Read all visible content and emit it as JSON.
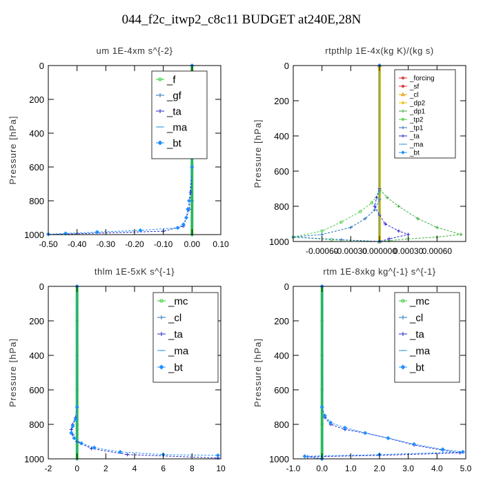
{
  "figure_title": "044_f2c_itwp2_c8c11  BUDGET at240E,28N",
  "chart_data": [
    {
      "type": "line",
      "title": "um   1E-4xm s^{-2}",
      "ylabel": "Pressure [hPa]",
      "xlim": [
        -0.5,
        0.1
      ],
      "ylim": [
        1000,
        0
      ],
      "xticks": [
        -0.5,
        -0.4,
        -0.3,
        -0.2,
        -0.1,
        0.0,
        0.1
      ],
      "xtick_labels": [
        "-0.50",
        "-0.40",
        "-0.30",
        "-0.20",
        "-0.10",
        "0.00",
        "0.10"
      ],
      "yticks": [
        0,
        200,
        400,
        600,
        800,
        1000
      ],
      "ytick_labels": [
        "0",
        "200",
        "400",
        "600",
        "800",
        "1000"
      ],
      "legend_position": "top-right",
      "series": [
        {
          "name": "_f",
          "color": "#2ecc2e",
          "marker": "circle",
          "points": [
            [
              0.0,
              0
            ],
            [
              0.0,
              200
            ],
            [
              0.0,
              400
            ],
            [
              0.0,
              600
            ],
            [
              0.0,
              800
            ],
            [
              0.0,
              1000
            ]
          ]
        },
        {
          "name": "_gf",
          "color": "#1f6fb5",
          "marker": "plus",
          "points": [
            [
              0.0,
              0
            ],
            [
              0.0,
              200
            ],
            [
              0.0,
              400
            ],
            [
              0.0,
              600
            ],
            [
              0.0,
              800
            ],
            [
              0.0,
              1000
            ]
          ]
        },
        {
          "name": "_ta",
          "color": "#2222cc",
          "marker": "plus",
          "points": [
            [
              0.0,
              0
            ],
            [
              0.0,
              600
            ],
            [
              -0.005,
              750
            ],
            [
              -0.01,
              850
            ],
            [
              -0.02,
              900
            ],
            [
              -0.03,
              950
            ],
            [
              -0.1,
              980
            ],
            [
              -0.5,
              1000
            ]
          ]
        },
        {
          "name": "_ma",
          "color": "#3399dd",
          "marker": "dash",
          "points": [
            [
              0.0,
              0
            ],
            [
              0.0,
              1000
            ]
          ]
        },
        {
          "name": "_bt",
          "color": "#1e90ff",
          "marker": "diamond",
          "points": [
            [
              0.0,
              0
            ],
            [
              0.0,
              600
            ],
            [
              -0.01,
              800
            ],
            [
              -0.015,
              850
            ],
            [
              -0.02,
              900
            ],
            [
              -0.03,
              940
            ],
            [
              -0.05,
              960
            ],
            [
              -0.18,
              975
            ],
            [
              -0.33,
              985
            ],
            [
              -0.44,
              993
            ],
            [
              -0.5,
              998
            ]
          ]
        }
      ]
    },
    {
      "type": "line",
      "title": "rtpthlp   1E-4x(kg K)/(kg s)",
      "ylabel": "Pressure [hPa]",
      "xlim": [
        -0.0009,
        0.0009
      ],
      "ylim": [
        1000,
        0
      ],
      "xticks": [
        -0.0006,
        -0.0003,
        0.0,
        0.0003,
        0.0006
      ],
      "xtick_labels": [
        "-0.00060",
        "-0.00030",
        "0.000000",
        "0.00030",
        "0.00060"
      ],
      "yticks": [
        0,
        200,
        400,
        600,
        800,
        1000
      ],
      "ytick_labels": [
        "0",
        "200",
        "400",
        "600",
        "800",
        "1000"
      ],
      "legend_position": "top-right",
      "series": [
        {
          "name": "_forcing",
          "color": "#cc2222",
          "marker": "circle",
          "points": [
            [
              0.0,
              0
            ],
            [
              0.0,
              1000
            ]
          ]
        },
        {
          "name": "_sf",
          "color": "#dd2222",
          "marker": "star",
          "points": [
            [
              0.0,
              0
            ],
            [
              0.0,
              1000
            ]
          ]
        },
        {
          "name": "_cl",
          "color": "#ee9900",
          "marker": "triangle",
          "points": [
            [
              0.0,
              0
            ],
            [
              0.0,
              1000
            ]
          ]
        },
        {
          "name": "_dp2",
          "color": "#e8c000",
          "marker": "circle",
          "points": [
            [
              0.0,
              0
            ],
            [
              0.0,
              1000
            ]
          ]
        },
        {
          "name": "_dp1",
          "color": "#33aa33",
          "marker": "plus",
          "points": [
            [
              0.0,
              0
            ],
            [
              0.0,
              700
            ],
            [
              8e-05,
              750
            ],
            [
              0.0002,
              800
            ],
            [
              0.0004,
              870
            ],
            [
              0.0006,
              920
            ],
            [
              0.00085,
              960
            ],
            [
              0.0006,
              975
            ],
            [
              0.0003,
              985
            ],
            [
              0.0001,
              995
            ],
            [
              0.0,
              1000
            ]
          ]
        },
        {
          "name": "_tp2",
          "color": "#44cc44",
          "marker": "circle",
          "points": [
            [
              0.0,
              0
            ],
            [
              0.0,
              720
            ],
            [
              -8e-05,
              780
            ],
            [
              -0.0002,
              830
            ],
            [
              -0.0004,
              890
            ],
            [
              -0.0006,
              940
            ],
            [
              -0.0009,
              975
            ],
            [
              -0.0005,
              990
            ],
            [
              0.0,
              1000
            ]
          ]
        },
        {
          "name": "_tp1",
          "color": "#1f6fb5",
          "marker": "plus",
          "points": [
            [
              0.0,
              0
            ],
            [
              0.0,
              760
            ],
            [
              -5e-05,
              820
            ],
            [
              -0.00015,
              870
            ],
            [
              -0.0003,
              920
            ],
            [
              -0.0006,
              960
            ],
            [
              -0.0009,
              975
            ],
            [
              -0.0004,
              990
            ],
            [
              0.0,
              1000
            ]
          ]
        },
        {
          "name": "_ta",
          "color": "#2222cc",
          "marker": "plus",
          "points": [
            [
              0.0,
              0
            ],
            [
              0.0,
              700
            ],
            [
              -3e-05,
              750
            ],
            [
              -5e-05,
              800
            ],
            [
              0.0,
              850
            ],
            [
              6e-05,
              900
            ],
            [
              0.0002,
              940
            ],
            [
              0.0003,
              960
            ],
            [
              0.0001,
              985
            ],
            [
              0.0,
              1000
            ]
          ]
        },
        {
          "name": "_ma",
          "color": "#3399dd",
          "marker": "dash",
          "points": [
            [
              0.0,
              0
            ],
            [
              0.0,
              1000
            ]
          ]
        },
        {
          "name": "_bt",
          "color": "#1e90ff",
          "marker": "diamond",
          "points": [
            [
              0.0,
              0
            ],
            [
              0.0,
              1000
            ]
          ]
        }
      ]
    },
    {
      "type": "line",
      "title": "thlm   1E-5xK  s^{-1}",
      "ylabel": "Pressure [hPa]",
      "xlim": [
        -2,
        10
      ],
      "ylim": [
        1000,
        0
      ],
      "xticks": [
        -2,
        0,
        2,
        4,
        6,
        8,
        10
      ],
      "xtick_labels": [
        "-2",
        "0",
        "2",
        "4",
        "6",
        "8",
        "10"
      ],
      "yticks": [
        0,
        200,
        400,
        600,
        800,
        1000
      ],
      "ytick_labels": [
        "0",
        "200",
        "400",
        "600",
        "800",
        "1000"
      ],
      "legend_position": "top-right",
      "series": [
        {
          "name": "_mc",
          "color": "#2ecc2e",
          "marker": "circle",
          "points": [
            [
              0.0,
              0
            ],
            [
              0.0,
              200
            ],
            [
              0.0,
              400
            ],
            [
              0.0,
              600
            ],
            [
              0.0,
              800
            ],
            [
              0.0,
              1000
            ]
          ]
        },
        {
          "name": "_cl",
          "color": "#1f6fb5",
          "marker": "plus",
          "points": [
            [
              0.0,
              0
            ],
            [
              0.0,
              1000
            ]
          ]
        },
        {
          "name": "_ta",
          "color": "#2222cc",
          "marker": "plus",
          "points": [
            [
              0.0,
              0
            ],
            [
              0.0,
              700
            ],
            [
              -0.1,
              760
            ],
            [
              -0.3,
              800
            ],
            [
              -0.4,
              830
            ],
            [
              -0.3,
              860
            ],
            [
              0.0,
              900
            ],
            [
              1.0,
              940
            ],
            [
              3.5,
              975
            ],
            [
              9.8,
              995
            ]
          ]
        },
        {
          "name": "_ma",
          "color": "#3399dd",
          "marker": "dash",
          "points": [
            [
              0.0,
              0
            ],
            [
              0.0,
              1000
            ]
          ]
        },
        {
          "name": "_bt",
          "color": "#1e90ff",
          "marker": "diamond",
          "points": [
            [
              0.0,
              0
            ],
            [
              0.0,
              700
            ],
            [
              -0.1,
              770
            ],
            [
              -0.3,
              810
            ],
            [
              -0.4,
              850
            ],
            [
              -0.2,
              880
            ],
            [
              0.3,
              910
            ],
            [
              1.2,
              935
            ],
            [
              3.0,
              960
            ],
            [
              6.0,
              975
            ],
            [
              9.8,
              980
            ]
          ]
        }
      ]
    },
    {
      "type": "line",
      "title": "rtm   1E-8xkg  kg^{-1} s^{-1}",
      "ylabel": "Pressure [hPa]",
      "xlim": [
        -1.0,
        5.0
      ],
      "ylim": [
        1000,
        0
      ],
      "xticks": [
        -1.0,
        0.0,
        1.0,
        2.0,
        3.0,
        4.0,
        5.0
      ],
      "xtick_labels": [
        "-1.0",
        "0.0",
        "1.0",
        "2.0",
        "3.0",
        "4.0",
        "5.0"
      ],
      "yticks": [
        0,
        200,
        400,
        600,
        800,
        1000
      ],
      "ytick_labels": [
        "0",
        "200",
        "400",
        "600",
        "800",
        "1000"
      ],
      "legend_position": "top-right",
      "series": [
        {
          "name": "_mc",
          "color": "#2ecc2e",
          "marker": "circle",
          "points": [
            [
              0.0,
              0
            ],
            [
              0.0,
              200
            ],
            [
              0.0,
              400
            ],
            [
              0.0,
              600
            ],
            [
              0.0,
              800
            ],
            [
              0.0,
              1000
            ]
          ]
        },
        {
          "name": "_cl",
          "color": "#1f6fb5",
          "marker": "plus",
          "points": [
            [
              0.0,
              0
            ],
            [
              0.0,
              1000
            ]
          ]
        },
        {
          "name": "_ta",
          "color": "#2222cc",
          "marker": "plus",
          "points": [
            [
              0.0,
              0
            ],
            [
              0.0,
              700
            ],
            [
              0.1,
              760
            ],
            [
              0.3,
              800
            ],
            [
              0.8,
              830
            ],
            [
              1.5,
              850
            ],
            [
              2.3,
              880
            ],
            [
              3.2,
              920
            ],
            [
              4.2,
              950
            ],
            [
              4.8,
              965
            ],
            [
              2.0,
              980
            ],
            [
              -0.5,
              988
            ],
            [
              0.0,
              1000
            ]
          ]
        },
        {
          "name": "_ma",
          "color": "#3399dd",
          "marker": "dash",
          "points": [
            [
              0.0,
              0
            ],
            [
              0.0,
              1000
            ]
          ]
        },
        {
          "name": "_bt",
          "color": "#1e90ff",
          "marker": "diamond",
          "points": [
            [
              0.0,
              0
            ],
            [
              0.0,
              700
            ],
            [
              0.1,
              750
            ],
            [
              0.3,
              790
            ],
            [
              0.8,
              820
            ],
            [
              1.5,
              850
            ],
            [
              2.3,
              880
            ],
            [
              3.2,
              915
            ],
            [
              4.2,
              945
            ],
            [
              4.9,
              960
            ],
            [
              2.0,
              975
            ],
            [
              -0.6,
              985
            ],
            [
              0.0,
              1000
            ]
          ]
        }
      ]
    }
  ]
}
